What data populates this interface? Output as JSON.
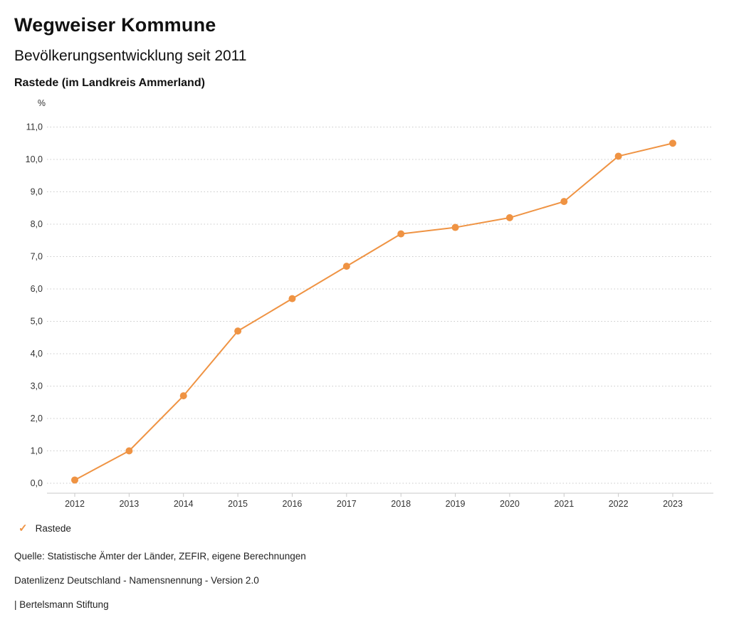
{
  "header": {
    "title": "Wegweiser Kommune",
    "subtitle": "Bevölkerungsentwicklung seit 2011",
    "region_label": "Rastede (im Landkreis Ammerland)"
  },
  "chart_data": {
    "type": "line",
    "title": "Bevölkerungsentwicklung seit 2011",
    "unit_label": "%",
    "categories": [
      "2012",
      "2013",
      "2014",
      "2015",
      "2016",
      "2017",
      "2018",
      "2019",
      "2020",
      "2021",
      "2022",
      "2023"
    ],
    "series": [
      {
        "name": "Rastede",
        "values": [
          0.1,
          1.0,
          2.7,
          4.7,
          5.7,
          6.7,
          7.7,
          7.9,
          8.2,
          8.7,
          10.1,
          10.5
        ],
        "color": "#ef9343"
      }
    ],
    "xlabel": "",
    "ylabel": "%",
    "ylim": [
      0,
      11
    ],
    "ytick_step": 1,
    "ytick_format": "comma-decimal",
    "grid": true,
    "gridline_color": "#c9c9c9",
    "axis_color": "#c9c9c9",
    "legend_position": "bottom-left"
  },
  "legend": {
    "items": [
      {
        "label": "Rastede",
        "color": "#ef9343",
        "marker_glyph": "✓"
      }
    ]
  },
  "footer": {
    "source": "Quelle: Statistische Ämter der Länder, ZEFIR, eigene Berechnungen",
    "license": "Datenlizenz Deutschland - Namensnennung - Version 2.0",
    "attribution": "| Bertelsmann Stiftung"
  }
}
